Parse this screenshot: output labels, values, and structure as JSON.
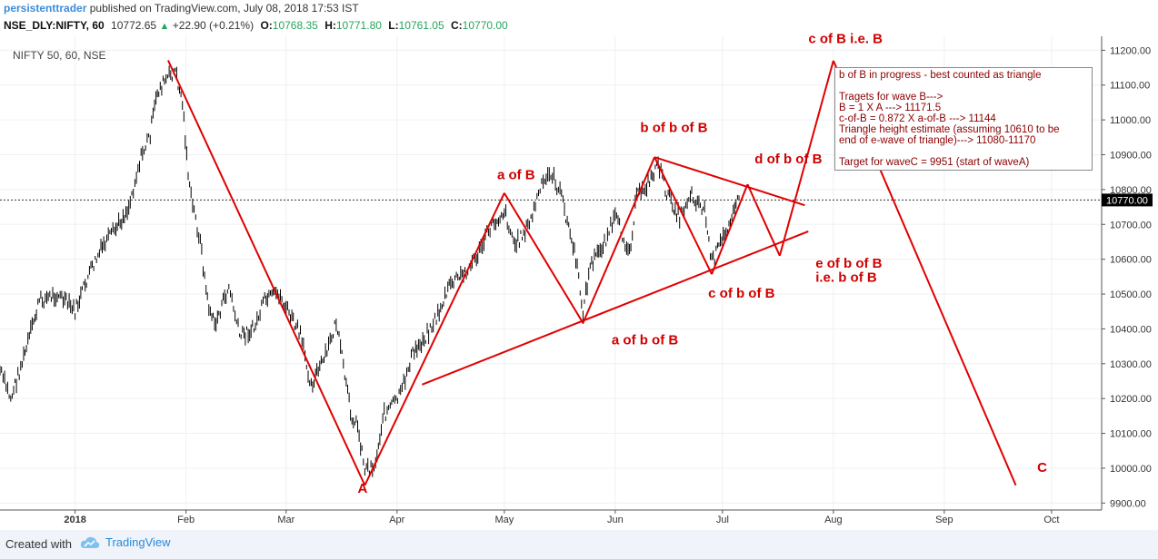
{
  "header": {
    "author": "persistenttrader",
    "published": "published on TradingView.com, July 08, 2018 17:53 IST"
  },
  "ticker": {
    "symbol": "NSE_DLY:NIFTY, 60",
    "last": "10772.65",
    "change": "+22.90 (+0.21%)",
    "o_label": "O:",
    "o": "10768.35",
    "h_label": "H:",
    "h": "10771.80",
    "l_label": "L:",
    "l": "10761.05",
    "c_label": "C:",
    "c": "10770.00"
  },
  "footer": {
    "created_with": "Created with",
    "brand": "TradingView"
  },
  "notes": [
    "b of B in progress - best counted as triangle",
    "",
    "Tragets for wave B--->",
    "B = 1 X A ---> 11171.5",
    "c-of-B = 0.872 X a-of-B ---> 11144",
    "Triangle height estimate (assuming 10610 to be",
    "end of e-wave of triangle)---> 11080-11170",
    "",
    "Target for waveC = 9951 (start of waveA)"
  ],
  "colors": {
    "wave": "#e00000",
    "label": "#d00000",
    "note": "#8b0000",
    "candle": "#000000",
    "price_tag_bg": "#000000",
    "price_tag_text": "#ffffff",
    "brand": "#2a8bd9",
    "up": "#26a65b"
  },
  "chart_data": {
    "type": "line",
    "title": "NIFTY 50, 60, NSE",
    "y_ticks": [
      "9900.00",
      "10000.00",
      "10100.00",
      "10200.00",
      "10300.00",
      "10400.00",
      "10500.00",
      "10600.00",
      "10700.00",
      "10800.00",
      "10900.00",
      "11000.00",
      "11100.00",
      "11200.00"
    ],
    "ylim": [
      9880,
      11240
    ],
    "x_ticks": [
      "2018",
      "Feb",
      "Mar",
      "Apr",
      "May",
      "Jun",
      "Jul",
      "Aug",
      "Sep",
      "Oct"
    ],
    "x_tick_dates": [
      "2018-01-01",
      "2018-02-01",
      "2018-03-01",
      "2018-04-01",
      "2018-05-01",
      "2018-06-01",
      "2018-07-01",
      "2018-08-01",
      "2018-09-01",
      "2018-10-01"
    ],
    "xlim": [
      "2017-12-11",
      "2018-10-15"
    ],
    "last_price": "10770.00",
    "price_series": [
      [
        "2017-12-11",
        10280
      ],
      [
        "2017-12-14",
        10200
      ],
      [
        "2017-12-18",
        10330
      ],
      [
        "2017-12-22",
        10480
      ],
      [
        "2017-12-27",
        10500
      ],
      [
        "2018-01-01",
        10450
      ],
      [
        "2018-01-05",
        10560
      ],
      [
        "2018-01-09",
        10640
      ],
      [
        "2018-01-12",
        10680
      ],
      [
        "2018-01-16",
        10750
      ],
      [
        "2018-01-19",
        10880
      ],
      [
        "2018-01-22",
        10960
      ],
      [
        "2018-01-24",
        11080
      ],
      [
        "2018-01-26",
        11110
      ],
      [
        "2018-01-29",
        11140
      ],
      [
        "2018-01-31",
        11050
      ],
      [
        "2018-02-02",
        10800
      ],
      [
        "2018-02-05",
        10650
      ],
      [
        "2018-02-07",
        10480
      ],
      [
        "2018-02-09",
        10410
      ],
      [
        "2018-02-13",
        10520
      ],
      [
        "2018-02-16",
        10380
      ],
      [
        "2018-02-20",
        10400
      ],
      [
        "2018-02-23",
        10480
      ],
      [
        "2018-02-27",
        10500
      ],
      [
        "2018-03-01",
        10460
      ],
      [
        "2018-03-05",
        10380
      ],
      [
        "2018-03-08",
        10240
      ],
      [
        "2018-03-12",
        10320
      ],
      [
        "2018-03-15",
        10420
      ],
      [
        "2018-03-19",
        10160
      ],
      [
        "2018-03-21",
        10120
      ],
      [
        "2018-03-23",
        10000
      ],
      [
        "2018-03-26",
        10010
      ],
      [
        "2018-03-28",
        10150
      ],
      [
        "2018-04-02",
        10210
      ],
      [
        "2018-04-05",
        10320
      ],
      [
        "2018-04-09",
        10380
      ],
      [
        "2018-04-12",
        10430
      ],
      [
        "2018-04-16",
        10530
      ],
      [
        "2018-04-20",
        10560
      ],
      [
        "2018-04-24",
        10620
      ],
      [
        "2018-04-27",
        10690
      ],
      [
        "2018-05-01",
        10740
      ],
      [
        "2018-05-04",
        10640
      ],
      [
        "2018-05-08",
        10700
      ],
      [
        "2018-05-11",
        10800
      ],
      [
        "2018-05-14",
        10850
      ],
      [
        "2018-05-17",
        10780
      ],
      [
        "2018-05-21",
        10600
      ],
      [
        "2018-05-23",
        10450
      ],
      [
        "2018-05-25",
        10580
      ],
      [
        "2018-05-29",
        10650
      ],
      [
        "2018-06-01",
        10720
      ],
      [
        "2018-06-05",
        10620
      ],
      [
        "2018-06-07",
        10780
      ],
      [
        "2018-06-11",
        10830
      ],
      [
        "2018-06-13",
        10880
      ],
      [
        "2018-06-15",
        10800
      ],
      [
        "2018-06-19",
        10720
      ],
      [
        "2018-06-22",
        10790
      ],
      [
        "2018-06-26",
        10740
      ],
      [
        "2018-06-28",
        10590
      ],
      [
        "2018-07-02",
        10680
      ],
      [
        "2018-07-04",
        10750
      ],
      [
        "2018-07-06",
        10770
      ]
    ],
    "wave_lines": [
      [
        [
          "2018-01-27",
          11171
        ],
        [
          "2018-03-23",
          9951
        ]
      ],
      [
        [
          "2018-03-23",
          9951
        ],
        [
          "2018-05-01",
          10790
        ]
      ],
      [
        [
          "2018-05-01",
          10790
        ],
        [
          "2018-05-23",
          10417
        ]
      ],
      [
        [
          "2018-05-23",
          10417
        ],
        [
          "2018-06-12",
          10893
        ]
      ],
      [
        [
          "2018-06-12",
          10893
        ],
        [
          "2018-06-28",
          10557
        ]
      ],
      [
        [
          "2018-06-28",
          10557
        ],
        [
          "2018-07-08",
          10815
        ]
      ],
      [
        [
          "2018-07-08",
          10815
        ],
        [
          "2018-07-17",
          10610
        ]
      ],
      [
        [
          "2018-07-17",
          10610
        ],
        [
          "2018-08-01",
          11170
        ]
      ],
      [
        [
          "2018-08-01",
          11170
        ],
        [
          "2018-09-21",
          9951
        ]
      ],
      [
        [
          "2018-04-08",
          10240
        ],
        [
          "2018-07-25",
          10680
        ]
      ],
      [
        [
          "2018-06-12",
          10893
        ],
        [
          "2018-07-24",
          10755
        ]
      ]
    ],
    "annotations": [
      {
        "text": "A",
        "x": "2018-03-21",
        "y": 9930
      },
      {
        "text": "a of B",
        "x": "2018-04-29",
        "y": 10830
      },
      {
        "text": "a of b of B",
        "x": "2018-05-31",
        "y": 10355
      },
      {
        "text": "b of b of B",
        "x": "2018-06-08",
        "y": 10965
      },
      {
        "text": "c of b of B",
        "x": "2018-06-27",
        "y": 10490
      },
      {
        "text": "d of b of B",
        "x": "2018-07-10",
        "y": 10875
      },
      {
        "text": "e of b of B",
        "x": "2018-07-27",
        "y": 10575
      },
      {
        "text": "i.e. b of B",
        "x": "2018-07-27",
        "y": 10535
      },
      {
        "text": "c of B i.e. B",
        "x": "2018-07-25",
        "y": 11220
      },
      {
        "text": "C",
        "x": "2018-09-27",
        "y": 9990
      }
    ]
  }
}
